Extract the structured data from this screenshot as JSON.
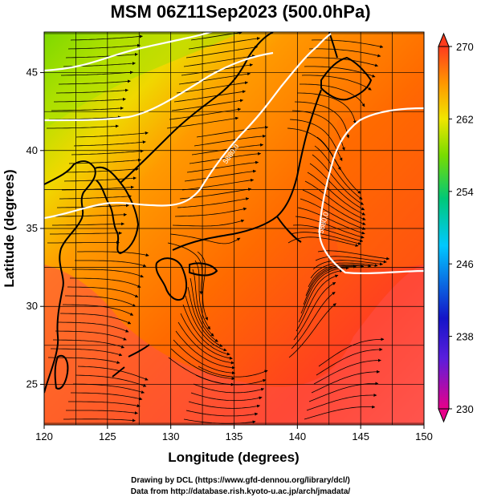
{
  "title": "MSM 06Z11Sep2023 (500.0hPa)",
  "footer": {
    "line1": "Drawing by DCL (https://www.gfd-dennou.org/library/dcl/)",
    "line2": "Data from http://database.rish.kyoto-u.ac.jp/arch/jmadata/"
  },
  "map": {
    "xlabel": "Longitude (degrees)",
    "ylabel": "Latitude  (degrees)",
    "xlim": [
      120,
      150
    ],
    "ylim": [
      22.4,
      47.6
    ],
    "x_ticks": [
      120,
      125,
      130,
      135,
      140,
      145,
      150
    ],
    "y_ticks": [
      25,
      30,
      35,
      40,
      45
    ],
    "contour_labels": [
      "5880.0",
      "5880.0"
    ]
  },
  "colorbar": {
    "range": [
      230,
      270
    ],
    "tick_labels": [
      "270",
      "262",
      "254",
      "246",
      "238",
      "230"
    ],
    "colors": [
      "#e8008a",
      "#2828c8",
      "#00c8ff",
      "#00c878",
      "#78dc00",
      "#f0e600",
      "#ff9600",
      "#ff3c1e"
    ]
  }
}
